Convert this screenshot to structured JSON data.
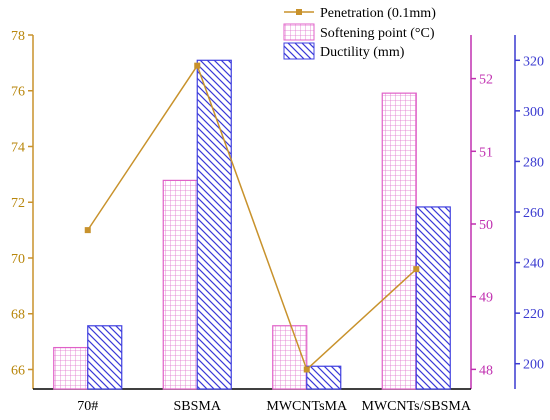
{
  "chart_data": {
    "type": "bar",
    "categories": [
      "70#",
      "SBSMA",
      "MWCNTsMA",
      "MWCNTs/SBSMA"
    ],
    "series": [
      {
        "name": "Penetration (0.1mm)",
        "kind": "line",
        "axis": "left",
        "color": "#c8922c",
        "values": [
          71.0,
          76.9,
          66.0,
          69.6
        ]
      },
      {
        "name": "Softening point (°C)",
        "kind": "bar",
        "axis": "middle",
        "color": "#e060c8",
        "values": [
          48.3,
          50.6,
          48.6,
          51.8
        ]
      },
      {
        "name": "Ductility (mm)",
        "kind": "bar",
        "axis": "right",
        "color": "#4040e0",
        "values": [
          215,
          320,
          199,
          262
        ]
      }
    ],
    "axes": {
      "left": {
        "ylim": [
          65.3,
          78
        ],
        "ticks": [
          66,
          68,
          70,
          72,
          74,
          76,
          78
        ],
        "color": "#c8922c"
      },
      "middle": {
        "ylim": [
          47.73,
          52.6
        ],
        "ticks": [
          48,
          49,
          50,
          51,
          52
        ],
        "color": "#c030b0"
      },
      "right": {
        "ylim": [
          190,
          330
        ],
        "ticks": [
          200,
          220,
          240,
          260,
          280,
          300,
          320
        ],
        "color": "#3a3ad0"
      }
    },
    "legend": {
      "placement": "top-right"
    }
  }
}
